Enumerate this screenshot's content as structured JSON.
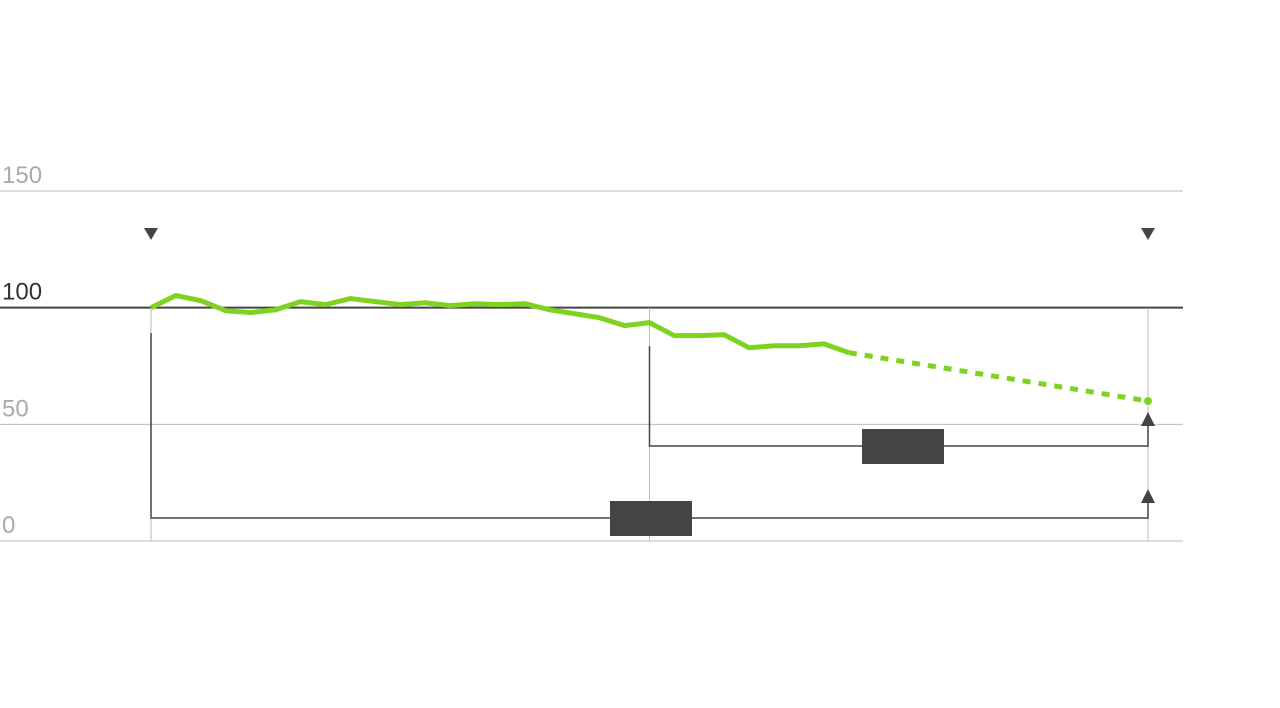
{
  "chart_data": {
    "type": "line",
    "title": "",
    "xlabel": "",
    "ylabel": "",
    "ylim": [
      0,
      150
    ],
    "xlim": [
      0,
      40
    ],
    "yticks": [
      "0",
      "50",
      "100",
      "150"
    ],
    "reference_value": 100,
    "grid": true,
    "series": [
      {
        "style": "solid",
        "color": "#7ed321",
        "x": [
          0,
          1,
          2,
          3,
          4,
          5,
          6,
          7,
          8,
          9,
          10,
          11,
          12,
          13,
          14,
          15,
          16,
          17,
          18,
          19,
          20,
          21,
          22,
          23,
          24,
          25,
          26,
          27,
          28
        ],
        "values": [
          100,
          105.2,
          103,
          98.7,
          97.9,
          99.1,
          102.6,
          101.3,
          103.9,
          102.6,
          101.3,
          102.1,
          100.9,
          101.7,
          101.3,
          101.7,
          99.1,
          97.4,
          95.7,
          92.3,
          93.6,
          88,
          88,
          88.4,
          82.8,
          83.7,
          83.7,
          84.5,
          80.7
        ]
      },
      {
        "style": "dotted",
        "color": "#7ed321",
        "x": [
          28,
          40
        ],
        "values": [
          80.7,
          60
        ]
      }
    ],
    "markers": [
      {
        "type": "triangle-down",
        "x": 0
      },
      {
        "type": "triangle-down",
        "x": 40
      }
    ],
    "brackets": [
      {
        "from_x": 0,
        "to_x": 40,
        "label": ""
      },
      {
        "from_x": 20,
        "to_x": 40,
        "label": ""
      }
    ],
    "colors": {
      "line": "#7ed321",
      "annotation": "#444444",
      "grid": "#bbbbbb",
      "reference": "#444444"
    }
  }
}
